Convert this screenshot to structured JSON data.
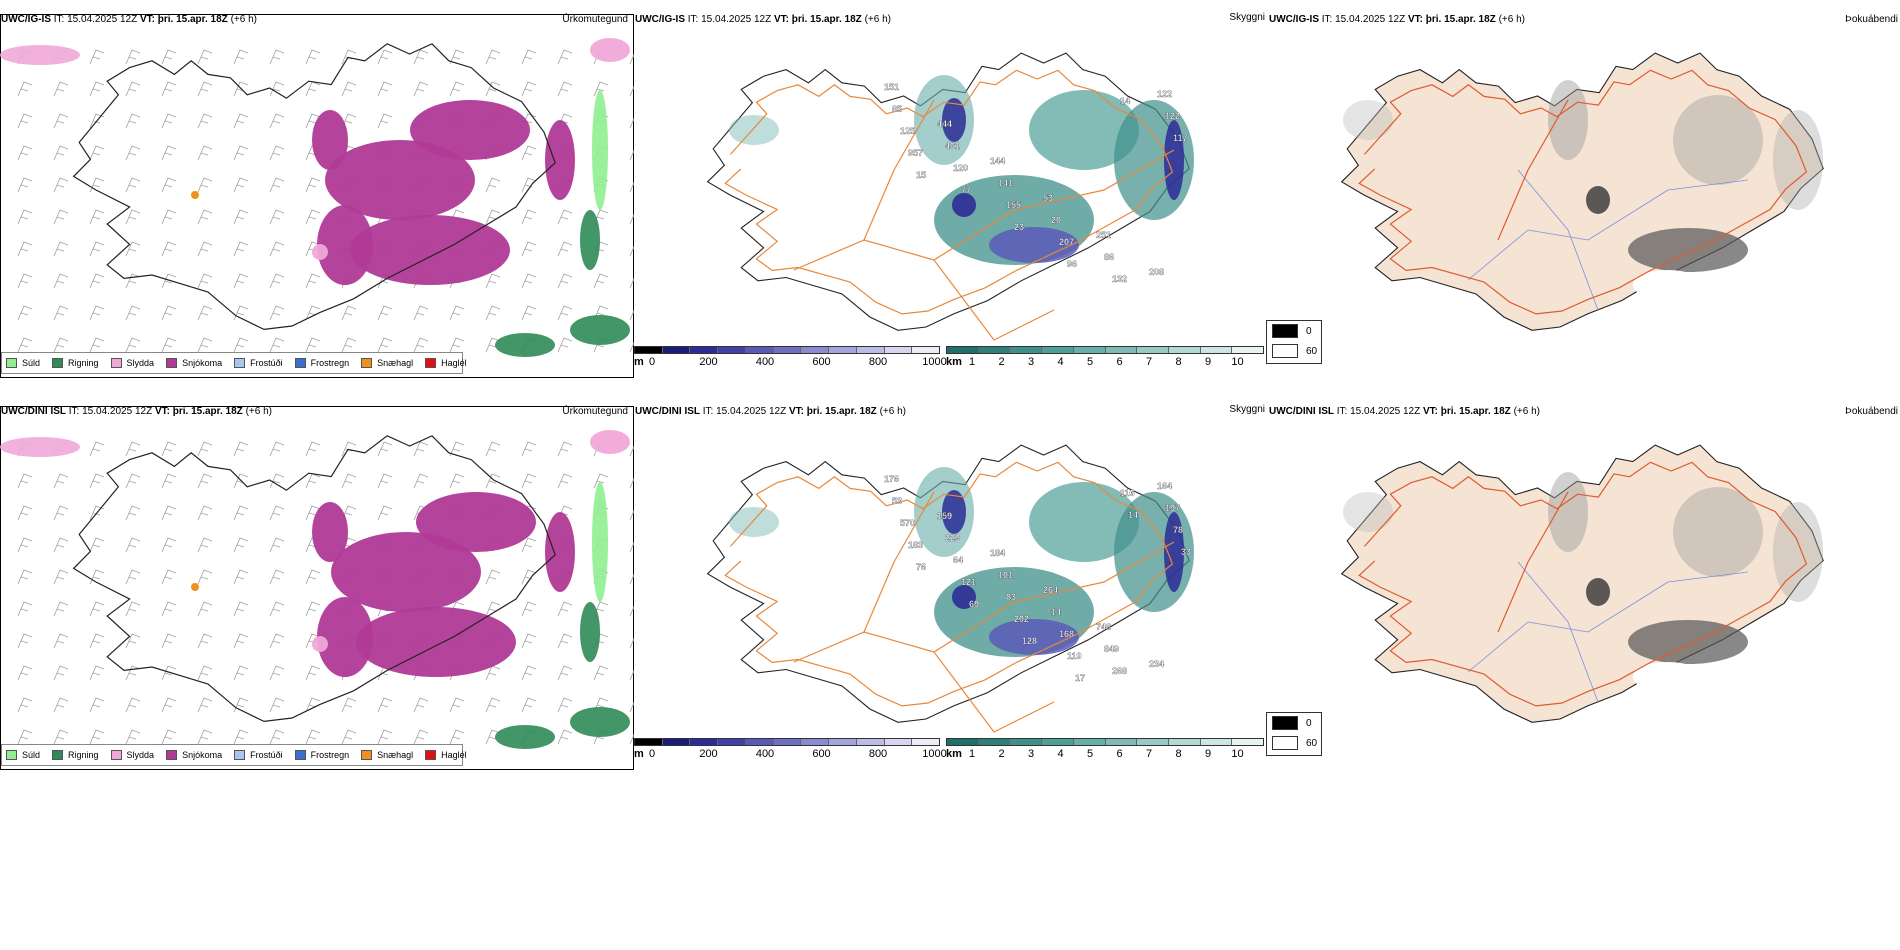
{
  "rows": [
    {
      "model": "UWC/IG-IS",
      "it_label": "IT:",
      "it_value": "15.04.2025 12Z",
      "vt_label": "VT:",
      "vt_value": "þri. 15.apr. 18Z",
      "lead": "(+6 h)",
      "panel1_title": "Úrkomutegund",
      "panel2_title": "Skyggni",
      "panel3_title": "Þokuábendi",
      "visibility_values": [
        "151",
        "444",
        "144",
        "53",
        "251",
        "208",
        "85",
        "461",
        "141",
        "20",
        "86",
        "122",
        "125",
        "120",
        "155",
        "207",
        "132",
        "122",
        "957",
        "77",
        "23",
        "96",
        "14",
        "117",
        "15"
      ]
    },
    {
      "model": "UWC/DINI ISL",
      "it_label": "IT:",
      "it_value": "15.04.2025 12Z",
      "vt_label": "VT:",
      "vt_value": "þri. 15.apr. 18Z",
      "lead": "(+6 h)",
      "panel1_title": "Úrkomutegund",
      "panel2_title": "Skyggni",
      "panel3_title": "Þokuábendi",
      "visibility_values": [
        "176",
        "159",
        "184",
        "264",
        "748",
        "234",
        "53",
        "229",
        "101",
        "14",
        "849",
        "164",
        "570",
        "64",
        "83",
        "168",
        "268",
        "197",
        "183",
        "121",
        "202",
        "110",
        "116",
        "78",
        "76",
        "69",
        "128",
        "17",
        "14",
        "33"
      ]
    }
  ],
  "precip_legend": [
    {
      "label": "Súld",
      "color": "#90ee90"
    },
    {
      "label": "Rigning",
      "color": "#2e8b57"
    },
    {
      "label": "Slydda",
      "color": "#f0a8d8"
    },
    {
      "label": "Snjókoma",
      "color": "#b03a96"
    },
    {
      "label": "Frostúði",
      "color": "#a7c7f0"
    },
    {
      "label": "Frostregn",
      "color": "#3a6fd0"
    },
    {
      "label": "Snæhagl",
      "color": "#f0901e"
    },
    {
      "label": "Haglél",
      "color": "#e01010"
    }
  ],
  "ceiling_bar": {
    "unit": "m",
    "ticks": [
      "0",
      "200",
      "400",
      "600",
      "800",
      "1000"
    ],
    "colors": [
      "#000000",
      "#1a1a7a",
      "#2c2c96",
      "#4040a8",
      "#5a5ab8",
      "#7070c0",
      "#8a8ad0",
      "#a4a4dc",
      "#bcbce6",
      "#d6d6f0",
      "#ececf8"
    ]
  },
  "visibility_bar": {
    "unit": "km",
    "ticks": [
      "1",
      "2",
      "3",
      "4",
      "5",
      "6",
      "7",
      "8",
      "9",
      "10"
    ],
    "colors": [
      "#1f6f6a",
      "#2f7f7a",
      "#3f8f8a",
      "#4f9f99",
      "#67aea8",
      "#80bcb7",
      "#99cbc6",
      "#b3d9d5",
      "#cce6e3",
      "#e6f3f1"
    ]
  },
  "fog_legend": [
    {
      "value": "0",
      "color": "#000000"
    },
    {
      "value": "60",
      "color": "#ffffff"
    }
  ],
  "colors": {
    "coastline": "#222222",
    "roads": "#e8883a",
    "fog_land": "#f5e4d4",
    "fog_roads": "#e05a30",
    "fog_rivers": "#7a8ee0",
    "barb": "#a0a0a0"
  }
}
